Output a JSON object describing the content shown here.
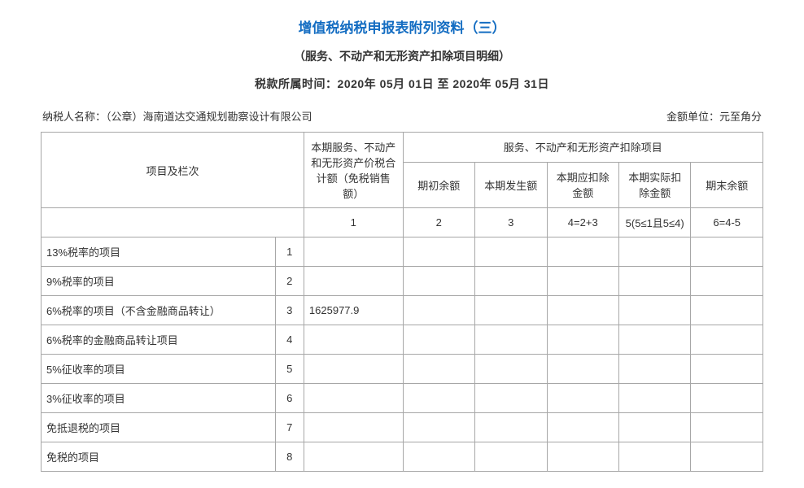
{
  "header": {
    "title": "增值税纳税申报表附列资料（三）",
    "subtitle": "（服务、不动产和无形资产扣除项目明细）",
    "period_label": "税款所属时间：",
    "period_value": "2020年 05月 01日 至 2020年 05月 31日",
    "taxpayer_label": "纳税人名称：",
    "taxpayer_value": "（公章）海南道达交通规划勘察设计有限公司",
    "unit_label": "金额单位：",
    "unit_value": "元至角分"
  },
  "table": {
    "head": {
      "item_col": "项目及栏次",
      "col1_header": "本期服务、不动产和无形资产价税合计额（免税销售额）",
      "group_header": "服务、不动产和无形资产扣除项目",
      "sub": {
        "c2": "期初余额",
        "c3": "本期发生额",
        "c4": "本期应扣除金额",
        "c5": "本期实际扣除金额",
        "c6": "期末余额"
      },
      "formula": {
        "f1": "1",
        "f2": "2",
        "f3": "3",
        "f4": "4=2+3",
        "f5": "5(5≤1且5≤4)",
        "f6": "6=4-5"
      }
    },
    "rows": [
      {
        "label": "13%税率的项目",
        "num": "1",
        "c1": "",
        "c2": "",
        "c3": "",
        "c4": "",
        "c5": "",
        "c6": ""
      },
      {
        "label": "9%税率的项目",
        "num": "2",
        "c1": "",
        "c2": "",
        "c3": "",
        "c4": "",
        "c5": "",
        "c6": ""
      },
      {
        "label": "6%税率的项目（不含金融商品转让）",
        "num": "3",
        "c1": "1625977.9",
        "c2": "",
        "c3": "",
        "c4": "",
        "c5": "",
        "c6": ""
      },
      {
        "label": "6%税率的金融商品转让项目",
        "num": "4",
        "c1": "",
        "c2": "",
        "c3": "",
        "c4": "",
        "c5": "",
        "c6": ""
      },
      {
        "label": "5%征收率的项目",
        "num": "5",
        "c1": "",
        "c2": "",
        "c3": "",
        "c4": "",
        "c5": "",
        "c6": ""
      },
      {
        "label": "3%征收率的项目",
        "num": "6",
        "c1": "",
        "c2": "",
        "c3": "",
        "c4": "",
        "c5": "",
        "c6": ""
      },
      {
        "label": "免抵退税的项目",
        "num": "7",
        "c1": "",
        "c2": "",
        "c3": "",
        "c4": "",
        "c5": "",
        "c6": ""
      },
      {
        "label": "免税的项目",
        "num": "8",
        "c1": "",
        "c2": "",
        "c3": "",
        "c4": "",
        "c5": "",
        "c6": ""
      }
    ]
  }
}
